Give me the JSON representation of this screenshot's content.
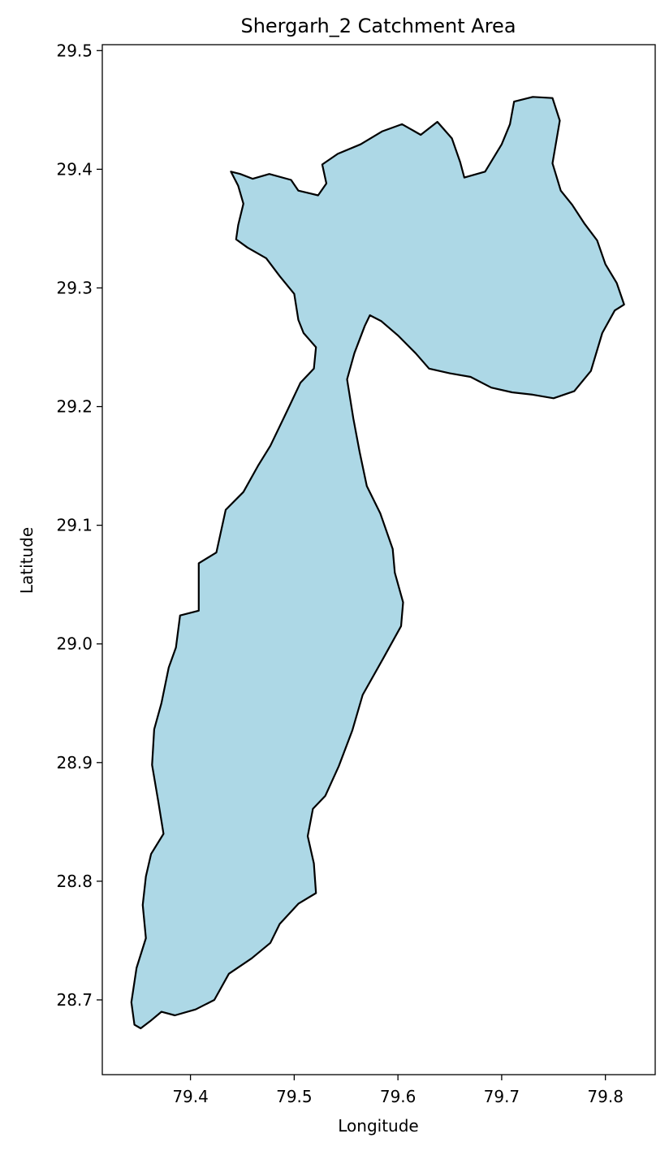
{
  "chart_data": {
    "type": "map",
    "title": "Shergarh_2 Catchment Area",
    "xlabel": "Longitude",
    "ylabel": "Latitude",
    "xlim": [
      79.315,
      79.848
    ],
    "ylim": [
      28.637,
      29.505
    ],
    "xticks": [
      79.4,
      79.5,
      79.6,
      79.7,
      79.8
    ],
    "xtick_labels": [
      "79.4",
      "79.5",
      "79.6",
      "79.7",
      "79.8"
    ],
    "yticks": [
      28.7,
      28.8,
      28.9,
      29.0,
      29.1,
      29.2,
      29.3,
      29.4,
      29.5
    ],
    "ytick_labels": [
      "28.7",
      "28.8",
      "28.9",
      "29.0",
      "29.1",
      "29.2",
      "29.3",
      "29.4",
      "29.5"
    ],
    "grid": false,
    "fill_color": "#add8e6",
    "edge_color": "#000000",
    "boundary": [
      [
        79.346,
        28.679
      ],
      [
        79.352,
        28.676
      ],
      [
        79.361,
        28.682
      ],
      [
        79.372,
        28.69
      ],
      [
        79.385,
        28.687
      ],
      [
        79.405,
        28.692
      ],
      [
        79.423,
        28.7
      ],
      [
        79.437,
        28.722
      ],
      [
        79.459,
        28.735
      ],
      [
        79.477,
        28.748
      ],
      [
        79.486,
        28.764
      ],
      [
        79.504,
        28.781
      ],
      [
        79.521,
        28.79
      ],
      [
        79.519,
        28.815
      ],
      [
        79.513,
        28.838
      ],
      [
        79.518,
        28.861
      ],
      [
        79.53,
        28.872
      ],
      [
        79.543,
        28.897
      ],
      [
        79.556,
        28.927
      ],
      [
        79.566,
        28.957
      ],
      [
        79.586,
        28.988
      ],
      [
        79.603,
        29.015
      ],
      [
        79.605,
        29.035
      ],
      [
        79.597,
        29.06
      ],
      [
        79.595,
        29.08
      ],
      [
        79.583,
        29.11
      ],
      [
        79.57,
        29.133
      ],
      [
        79.563,
        29.162
      ],
      [
        79.557,
        29.19
      ],
      [
        79.551,
        29.223
      ],
      [
        79.558,
        29.245
      ],
      [
        79.568,
        29.268
      ],
      [
        79.573,
        29.277
      ],
      [
        79.584,
        29.272
      ],
      [
        79.6,
        29.26
      ],
      [
        79.617,
        29.245
      ],
      [
        79.63,
        29.232
      ],
      [
        79.65,
        29.228
      ],
      [
        79.67,
        29.225
      ],
      [
        79.69,
        29.216
      ],
      [
        79.71,
        29.212
      ],
      [
        79.73,
        29.21
      ],
      [
        79.75,
        29.207
      ],
      [
        79.77,
        29.213
      ],
      [
        79.786,
        29.23
      ],
      [
        79.797,
        29.262
      ],
      [
        79.809,
        29.281
      ],
      [
        79.818,
        29.286
      ],
      [
        79.811,
        29.304
      ],
      [
        79.8,
        29.32
      ],
      [
        79.792,
        29.34
      ],
      [
        79.78,
        29.354
      ],
      [
        79.768,
        29.37
      ],
      [
        79.757,
        29.382
      ],
      [
        79.749,
        29.405
      ],
      [
        79.756,
        29.441
      ],
      [
        79.749,
        29.46
      ],
      [
        79.73,
        29.461
      ],
      [
        79.712,
        29.457
      ],
      [
        79.708,
        29.438
      ],
      [
        79.7,
        29.421
      ],
      [
        79.684,
        29.398
      ],
      [
        79.664,
        29.393
      ],
      [
        79.66,
        29.406
      ],
      [
        79.652,
        29.426
      ],
      [
        79.638,
        29.44
      ],
      [
        79.622,
        29.429
      ],
      [
        79.604,
        29.438
      ],
      [
        79.585,
        29.432
      ],
      [
        79.564,
        29.421
      ],
      [
        79.542,
        29.413
      ],
      [
        79.527,
        29.404
      ],
      [
        79.531,
        29.388
      ],
      [
        79.523,
        29.378
      ],
      [
        79.504,
        29.382
      ],
      [
        79.497,
        29.391
      ],
      [
        79.476,
        29.396
      ],
      [
        79.46,
        29.392
      ],
      [
        79.448,
        29.396
      ],
      [
        79.439,
        29.398
      ],
      [
        79.446,
        29.386
      ],
      [
        79.451,
        29.371
      ],
      [
        79.446,
        29.353
      ],
      [
        79.444,
        29.341
      ],
      [
        79.455,
        29.334
      ],
      [
        79.473,
        29.325
      ],
      [
        79.486,
        29.31
      ],
      [
        79.5,
        29.295
      ],
      [
        79.504,
        29.273
      ],
      [
        79.509,
        29.262
      ],
      [
        79.521,
        29.25
      ],
      [
        79.519,
        29.232
      ],
      [
        79.506,
        29.22
      ],
      [
        79.493,
        29.196
      ],
      [
        79.477,
        29.167
      ],
      [
        79.465,
        29.15
      ],
      [
        79.451,
        29.128
      ],
      [
        79.434,
        29.113
      ],
      [
        79.425,
        29.077
      ],
      [
        79.408,
        29.068
      ],
      [
        79.408,
        29.047
      ],
      [
        79.408,
        29.028
      ],
      [
        79.39,
        29.024
      ],
      [
        79.386,
        28.997
      ],
      [
        79.379,
        28.98
      ],
      [
        79.372,
        28.95
      ],
      [
        79.365,
        28.928
      ],
      [
        79.363,
        28.898
      ],
      [
        79.369,
        28.867
      ],
      [
        79.374,
        28.84
      ],
      [
        79.362,
        28.823
      ],
      [
        79.357,
        28.804
      ],
      [
        79.354,
        28.78
      ],
      [
        79.357,
        28.752
      ],
      [
        79.348,
        28.727
      ],
      [
        79.343,
        28.698
      ],
      [
        79.346,
        28.679
      ]
    ]
  }
}
